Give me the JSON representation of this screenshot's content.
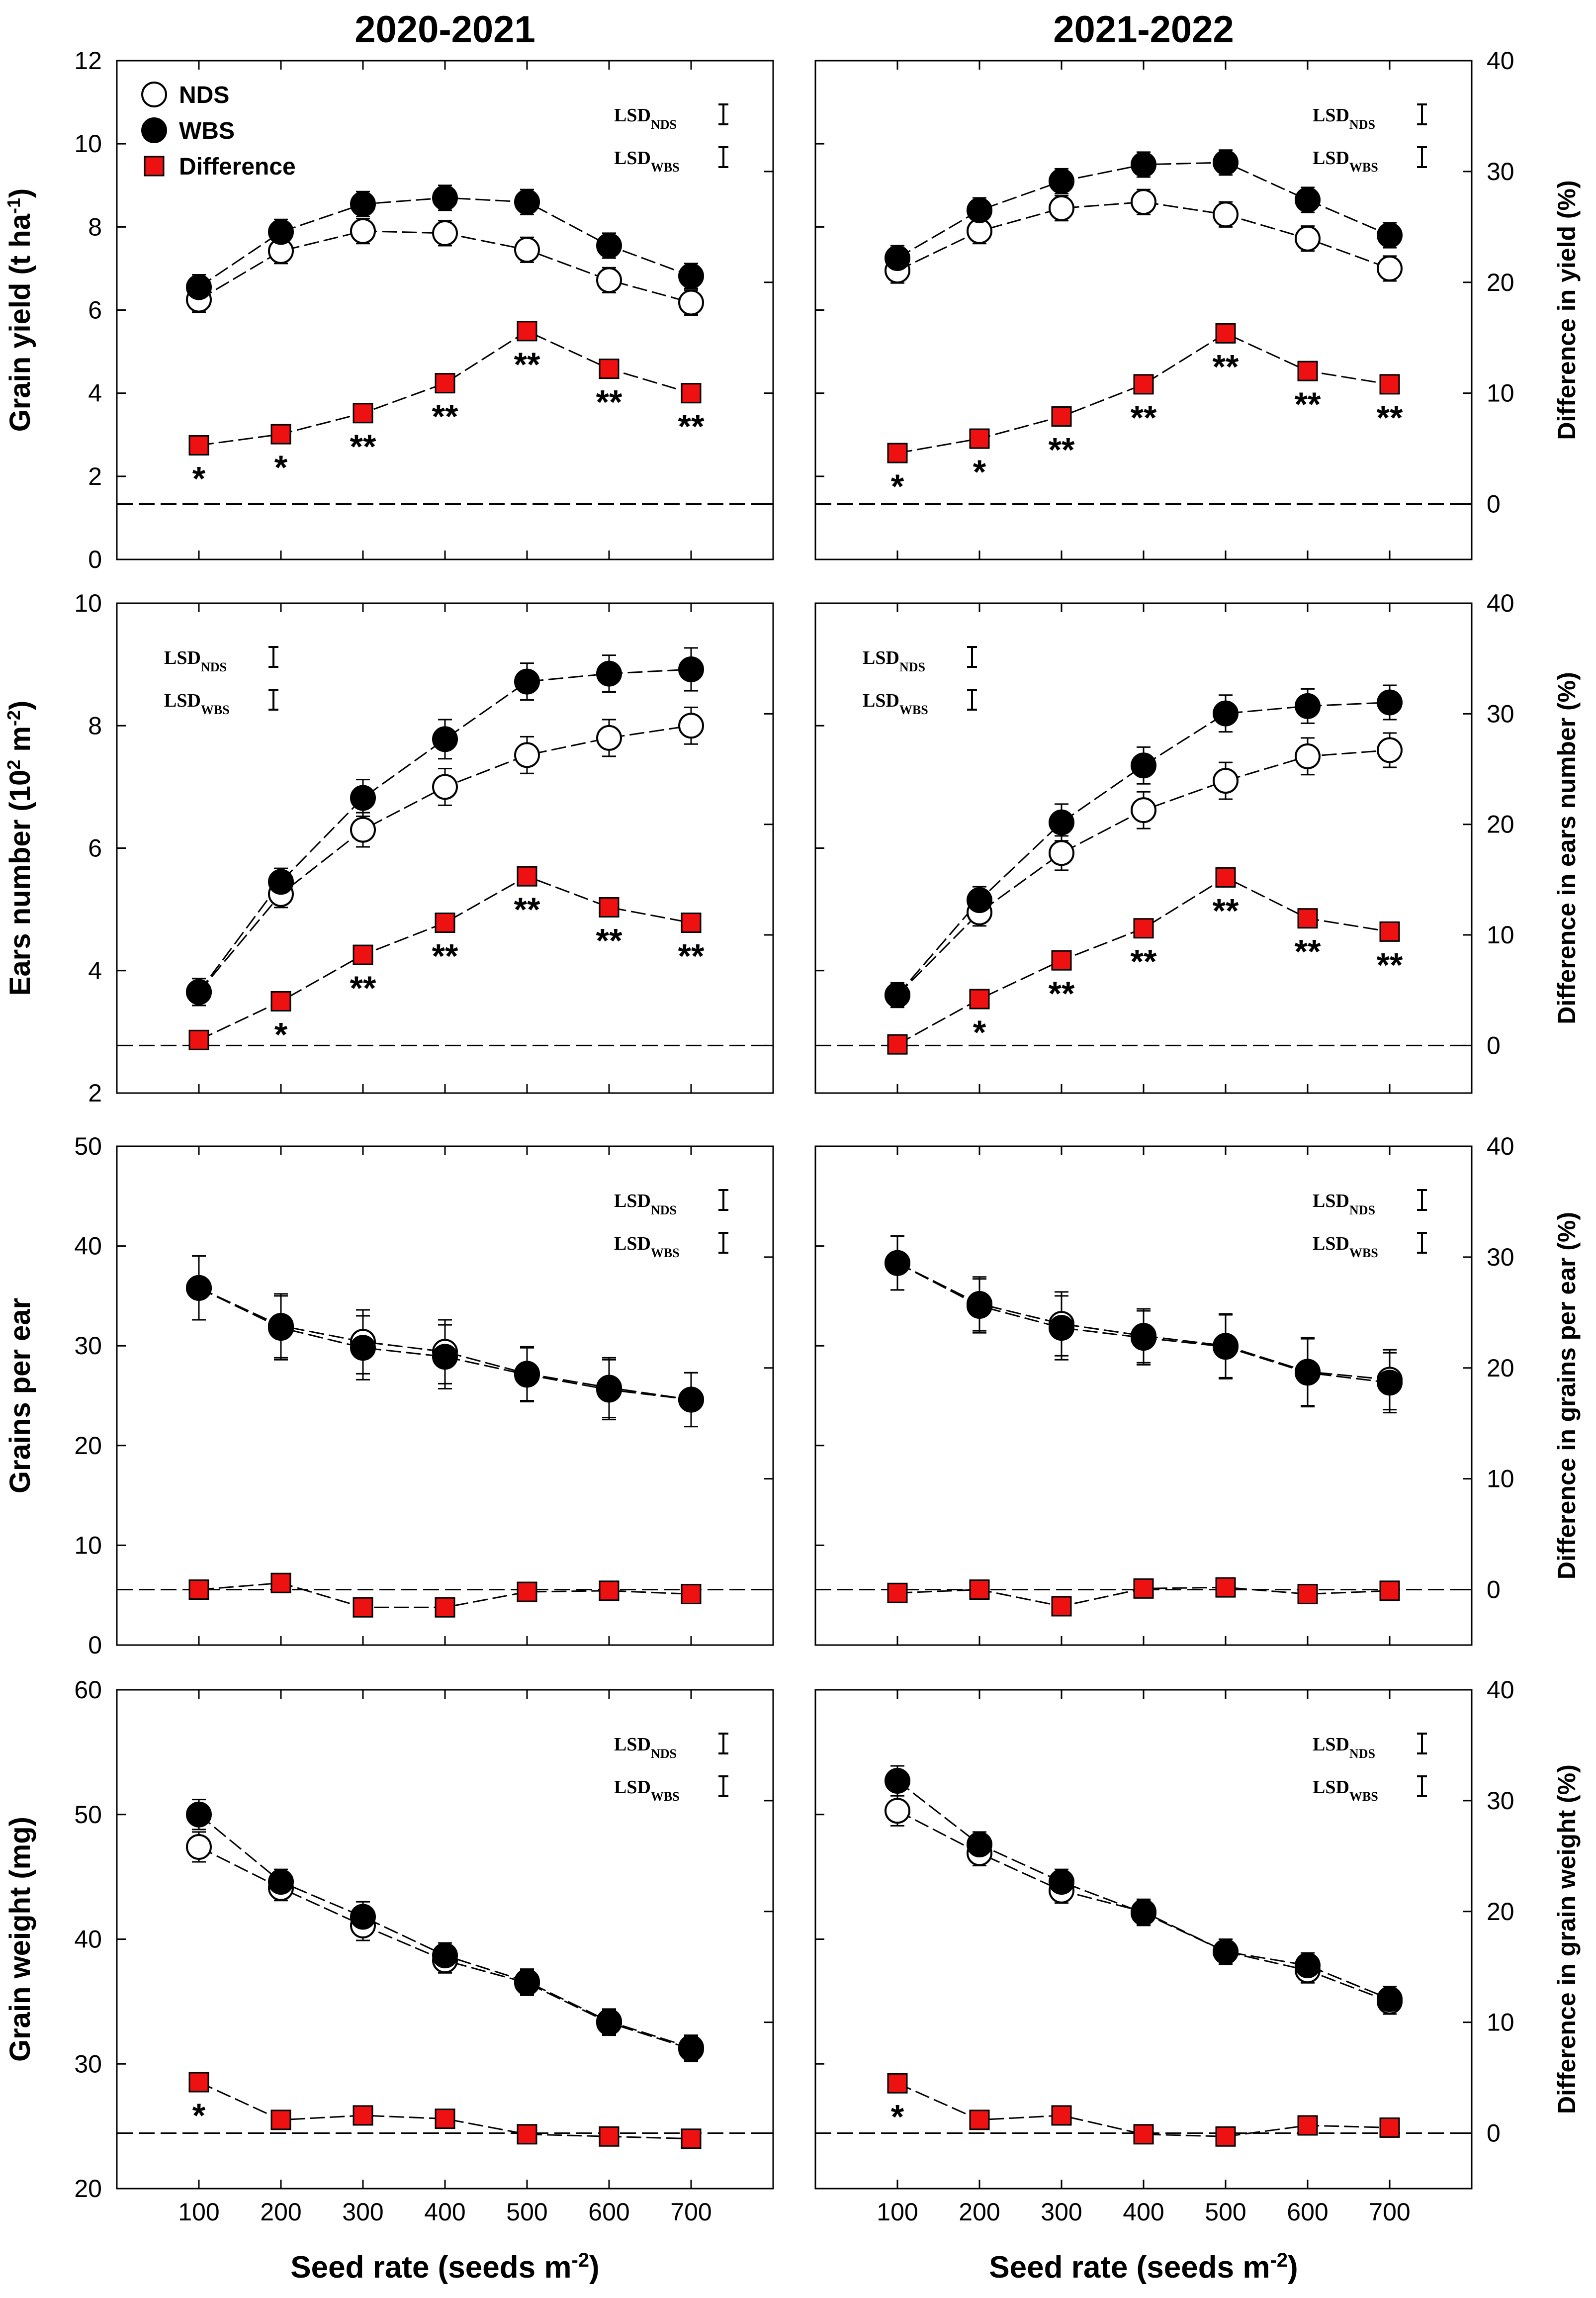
{
  "chart_data": {
    "type": "line",
    "layout": "4 rows x 2 columns",
    "column_titles": [
      "2020-2021",
      "2021-2022"
    ],
    "x_label": "Seed rate (seeds m",
    "x_label_sup": "-2",
    "x_label_close": ")",
    "x_ticks": [
      100,
      200,
      300,
      400,
      500,
      600,
      700
    ],
    "x": [
      100,
      200,
      300,
      400,
      500,
      600,
      700
    ],
    "legend": {
      "nds": "NDS",
      "wbs": "WBS",
      "diff": "Difference"
    },
    "lsd": {
      "main": "LSD",
      "nds_sub": "NDS",
      "wbs_sub": "WBS"
    },
    "colors": {
      "nds_fill": "#ffffff",
      "wbs_fill": "#000000",
      "diff_fill": "#ee1111",
      "line": "#000000"
    },
    "rows": [
      {
        "ylabel": "Grain yield (t ha",
        "ylabel_sup": "-1",
        "ylabel_close": ")",
        "y2label": "Difference in yield (%)",
        "ylim": [
          0,
          12
        ],
        "yticks": [
          0,
          2,
          4,
          6,
          8,
          10,
          12
        ],
        "y2lim": [
          -5,
          40
        ],
        "y2ticks": [
          0,
          10,
          20,
          30,
          40
        ],
        "lsd_place": "right",
        "panels": [
          {
            "season": "2020-2021",
            "show_legend": true,
            "nds": [
              6.25,
              7.42,
              7.9,
              7.85,
              7.45,
              6.72,
              6.18
            ],
            "nds_err": [
              0.3,
              0.3,
              0.3,
              0.3,
              0.3,
              0.3,
              0.3
            ],
            "wbs": [
              6.55,
              7.88,
              8.55,
              8.7,
              8.6,
              7.55,
              6.82
            ],
            "wbs_err": [
              0.3,
              0.3,
              0.3,
              0.3,
              0.3,
              0.3,
              0.3
            ],
            "diff": [
              5.3,
              6.3,
              8.2,
              10.9,
              15.6,
              12.2,
              10.0
            ],
            "sig": [
              "*",
              "*",
              "**",
              "**",
              "**",
              "**",
              "**"
            ]
          },
          {
            "season": "2021-2022",
            "show_legend": false,
            "nds": [
              6.95,
              7.9,
              8.45,
              8.6,
              8.3,
              7.72,
              7.0
            ],
            "nds_err": [
              0.3,
              0.3,
              0.3,
              0.3,
              0.3,
              0.3,
              0.3
            ],
            "wbs": [
              7.25,
              8.4,
              9.1,
              9.5,
              9.55,
              8.65,
              7.8
            ],
            "wbs_err": [
              0.3,
              0.3,
              0.3,
              0.3,
              0.3,
              0.3,
              0.3
            ],
            "diff": [
              4.6,
              5.9,
              7.9,
              10.8,
              15.4,
              12.0,
              10.8
            ],
            "sig": [
              "*",
              "*",
              "**",
              "**",
              "**",
              "**",
              "**"
            ]
          }
        ]
      },
      {
        "ylabel": "Ears number (10",
        "ylabel_mid_sup": "2",
        "ylabel_rest": " m",
        "ylabel_sup": "-2",
        "ylabel_close": ")",
        "y2label": "Difference in ears number (%)",
        "ylim": [
          2,
          10
        ],
        "yticks": [
          2,
          4,
          6,
          8,
          10
        ],
        "y2lim": [
          -4.3,
          40
        ],
        "y2ticks": [
          0,
          10,
          20,
          30,
          40
        ],
        "lsd_place": "left",
        "panels": [
          {
            "season": "2020-2021",
            "show_legend": false,
            "nds": [
              3.65,
              5.25,
              6.3,
              7.0,
              7.52,
              7.8,
              8.0
            ],
            "nds_err": [
              0.22,
              0.22,
              0.28,
              0.3,
              0.3,
              0.3,
              0.3
            ],
            "wbs": [
              3.65,
              5.45,
              6.82,
              7.78,
              8.72,
              8.85,
              8.92
            ],
            "wbs_err": [
              0.22,
              0.22,
              0.3,
              0.32,
              0.3,
              0.3,
              0.35
            ],
            "diff": [
              0.5,
              4.0,
              8.2,
              11.1,
              15.3,
              12.5,
              11.1
            ],
            "sig": [
              "",
              "*",
              "**",
              "**",
              "**",
              "**",
              "**"
            ]
          },
          {
            "season": "2021-2022",
            "show_legend": false,
            "nds": [
              3.6,
              4.95,
              5.92,
              6.62,
              7.1,
              7.5,
              7.6
            ],
            "nds_err": [
              0.2,
              0.22,
              0.28,
              0.3,
              0.3,
              0.3,
              0.28
            ],
            "wbs": [
              3.6,
              5.15,
              6.42,
              7.35,
              8.2,
              8.32,
              8.38
            ],
            "wbs_err": [
              0.2,
              0.22,
              0.3,
              0.3,
              0.3,
              0.28,
              0.28
            ],
            "diff": [
              0.1,
              4.2,
              7.7,
              10.6,
              15.2,
              11.5,
              10.3
            ],
            "sig": [
              "",
              "*",
              "**",
              "**",
              "**",
              "**",
              "**"
            ]
          }
        ]
      },
      {
        "ylabel": "Grains per ear",
        "y2label": "Difference in grains per ear  (%)",
        "ylim": [
          0,
          50
        ],
        "yticks": [
          0,
          10,
          20,
          30,
          40,
          50
        ],
        "y2lim": [
          -5,
          40
        ],
        "y2ticks": [
          0,
          10,
          20,
          30,
          40
        ],
        "lsd_place": "right",
        "panels": [
          {
            "season": "2020-2021",
            "show_legend": false,
            "nds": [
              35.8,
              32.0,
              30.4,
              29.4,
              27.2,
              25.8,
              24.6
            ],
            "nds_err": [
              3.2,
              3.2,
              3.2,
              3.2,
              2.7,
              3.0,
              2.7
            ],
            "wbs": [
              35.8,
              31.8,
              29.8,
              28.9,
              27.1,
              25.6,
              24.6
            ],
            "wbs_err": [
              3.2,
              3.2,
              3.2,
              3.2,
              2.7,
              3.0,
              2.7
            ],
            "diff": [
              0.0,
              0.6,
              -1.6,
              -1.6,
              -0.2,
              -0.1,
              -0.4
            ],
            "sig": [
              "",
              "",
              "",
              "",
              "",
              "",
              ""
            ]
          },
          {
            "season": "2021-2022",
            "show_legend": false,
            "nds": [
              38.3,
              34.2,
              32.2,
              31.0,
              30.0,
              27.4,
              26.6
            ],
            "nds_err": [
              2.7,
              2.7,
              3.2,
              2.7,
              3.2,
              3.4,
              3.0
            ],
            "wbs": [
              38.3,
              34.0,
              31.8,
              30.8,
              29.9,
              27.3,
              26.3
            ],
            "wbs_err": [
              2.7,
              2.7,
              3.2,
              2.7,
              3.2,
              3.4,
              3.0
            ],
            "diff": [
              -0.3,
              0.0,
              -1.5,
              0.1,
              0.2,
              -0.4,
              -0.1
            ],
            "sig": [
              "",
              "",
              "",
              "",
              "",
              "",
              ""
            ]
          }
        ]
      },
      {
        "ylabel": "Grain weight (mg)",
        "y2label": "Difference in grain weight (%)",
        "ylim": [
          20,
          60
        ],
        "yticks": [
          20,
          30,
          40,
          50,
          60
        ],
        "y2lim": [
          -5,
          40
        ],
        "y2ticks": [
          0,
          10,
          20,
          30,
          40
        ],
        "lsd_place": "right",
        "panels": [
          {
            "season": "2020-2021",
            "show_legend": false,
            "nds": [
              47.4,
              44.1,
              41.1,
              38.3,
              36.5,
              33.3,
              31.2
            ],
            "nds_err": [
              1.2,
              1.0,
              1.2,
              1.0,
              1.0,
              1.0,
              1.0
            ],
            "wbs": [
              50.0,
              44.6,
              41.8,
              38.7,
              36.6,
              33.4,
              31.3
            ],
            "wbs_err": [
              1.2,
              1.0,
              1.2,
              1.0,
              1.0,
              1.0,
              1.0
            ],
            "diff": [
              4.6,
              1.2,
              1.6,
              1.3,
              -0.1,
              -0.3,
              -0.5
            ],
            "sig": [
              "*",
              "",
              "",
              "",
              "",
              "",
              ""
            ]
          },
          {
            "season": "2021-2022",
            "show_legend": false,
            "nds": [
              50.3,
              46.9,
              43.9,
              42.2,
              39.0,
              37.5,
              35.0
            ],
            "nds_err": [
              1.2,
              1.0,
              1.0,
              1.0,
              1.0,
              1.0,
              1.0
            ],
            "wbs": [
              52.7,
              47.6,
              44.6,
              42.1,
              39.0,
              37.9,
              35.2
            ],
            "wbs_err": [
              1.2,
              1.0,
              1.0,
              1.0,
              1.0,
              1.0,
              1.0
            ],
            "diff": [
              4.5,
              1.2,
              1.6,
              -0.1,
              -0.3,
              0.7,
              0.5
            ],
            "sig": [
              "*",
              "",
              "",
              "",
              "",
              "",
              ""
            ]
          }
        ]
      }
    ]
  }
}
